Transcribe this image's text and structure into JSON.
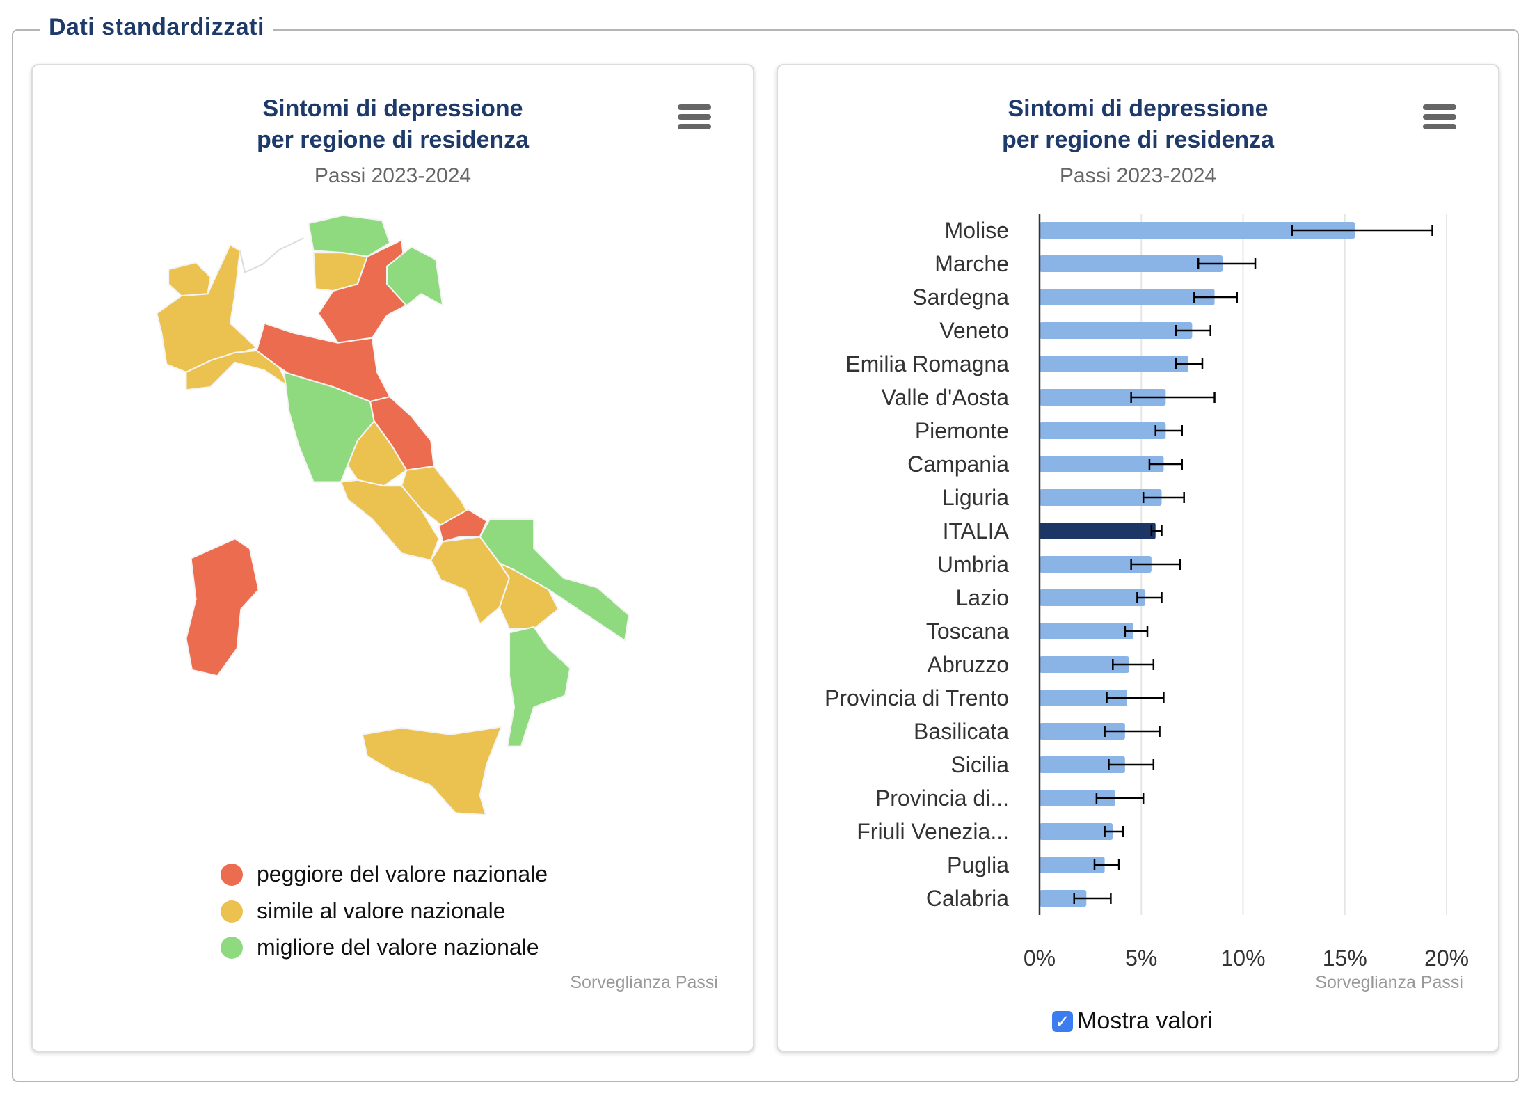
{
  "section_title": "Dati standardizzati",
  "colors": {
    "worse": "#ec6c50",
    "similar": "#ebc24f",
    "better": "#8fd97f",
    "bar": "#8ab3e6",
    "italia_bar": "#1c3766",
    "title": "#1d3a6b"
  },
  "map_panel": {
    "title_line1": "Sintomi di depressione",
    "title_line2": "per regione di residenza",
    "subtitle": "Passi 2023-2024",
    "legend": [
      {
        "label": "peggiore del valore nazionale",
        "color": "#ec6c50"
      },
      {
        "label": "simile al valore nazionale",
        "color": "#ebc24f"
      },
      {
        "label": "migliore del valore nazionale",
        "color": "#8fd97f"
      }
    ],
    "credit": "Sorveglianza Passi",
    "menu_icon": "hamburger-icon"
  },
  "bar_panel": {
    "title_line1": "Sintomi di depressione",
    "title_line2": "per regione di residenza",
    "subtitle": "Passi 2023-2024",
    "credit": "Sorveglianza Passi",
    "checkbox_label": "Mostra valori",
    "checkbox_checked": true,
    "menu_icon": "hamburger-icon"
  },
  "chart_data": {
    "type": "bar",
    "orientation": "horizontal",
    "title": "Sintomi di depressione per regione di residenza",
    "subtitle": "Passi 2023-2024",
    "xlabel": "",
    "ylabel": "",
    "xlim": [
      0,
      20
    ],
    "x_ticks": [
      "0%",
      "5%",
      "10%",
      "15%",
      "20%"
    ],
    "grid": true,
    "categories": [
      "Molise",
      "Marche",
      "Sardegna",
      "Veneto",
      "Emilia Romagna",
      "Valle d'Aosta",
      "Piemonte",
      "Campania",
      "Liguria",
      "ITALIA",
      "Umbria",
      "Lazio",
      "Toscana",
      "Abruzzo",
      "Provincia di Trento",
      "Basilicata",
      "Sicilia",
      "Provincia di...",
      "Friuli Venezia...",
      "Puglia",
      "Calabria"
    ],
    "values": [
      15.5,
      9.0,
      8.6,
      7.5,
      7.3,
      6.2,
      6.2,
      6.1,
      6.0,
      5.7,
      5.5,
      5.2,
      4.6,
      4.4,
      4.3,
      4.2,
      4.2,
      3.7,
      3.6,
      3.2,
      2.3
    ],
    "ci_low": [
      12.4,
      7.8,
      7.6,
      6.7,
      6.7,
      4.5,
      5.7,
      5.4,
      5.1,
      5.5,
      4.5,
      4.8,
      4.2,
      3.6,
      3.3,
      3.2,
      3.4,
      2.8,
      3.2,
      2.7,
      1.7
    ],
    "ci_high": [
      19.3,
      10.6,
      9.7,
      8.4,
      8.0,
      8.6,
      7.0,
      7.0,
      7.1,
      6.0,
      6.9,
      6.0,
      5.3,
      5.6,
      6.1,
      5.9,
      5.6,
      5.1,
      4.1,
      3.9,
      3.5
    ],
    "highlight": "ITALIA"
  }
}
